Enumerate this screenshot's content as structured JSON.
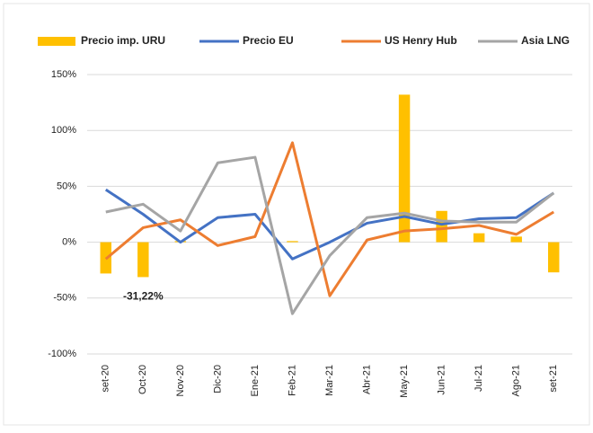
{
  "chart_data": {
    "type": "bar",
    "categories": [
      "set-20",
      "Oct-20",
      "Nov-20",
      "Dic-20",
      "Ene-21",
      "Feb-21",
      "Mar-21",
      "Abr-21",
      "May-21",
      "Jun-21",
      "Jul-21",
      "Ago-21",
      "set-21"
    ],
    "series": [
      {
        "name": "Precio imp. URU",
        "type": "bar",
        "color": "#ffc000",
        "values": [
          -28,
          -31.22,
          1,
          0,
          0,
          1,
          0,
          0,
          132,
          28,
          8,
          5,
          -27
        ],
        "value_labels": [
          null,
          "-31,22%",
          null,
          null,
          null,
          null,
          null,
          null,
          null,
          null,
          null,
          null,
          null
        ]
      },
      {
        "name": "Precio EU",
        "type": "line",
        "color": "#4472c4",
        "values": [
          47,
          25,
          0,
          22,
          25,
          -15,
          0,
          17,
          23,
          16,
          21,
          22,
          44
        ]
      },
      {
        "name": "US Henry Hub",
        "type": "line",
        "color": "#ed7d31",
        "values": [
          -15,
          13,
          20,
          -3,
          5,
          89,
          -48,
          2,
          10,
          12,
          15,
          7,
          27
        ]
      },
      {
        "name": "Asia LNG",
        "type": "line",
        "color": "#a5a5a5",
        "values": [
          27,
          34,
          10,
          71,
          76,
          -64,
          -12,
          22,
          26,
          19,
          18,
          18,
          44
        ]
      }
    ],
    "ylim": [
      -100,
      150
    ],
    "yticks": [
      {
        "value": -100,
        "label": "-100%"
      },
      {
        "value": -50,
        "label": "-50%"
      },
      {
        "value": 0,
        "label": "0%"
      },
      {
        "value": 50,
        "label": "50%"
      },
      {
        "value": 100,
        "label": "100%"
      },
      {
        "value": 150,
        "label": "150%"
      }
    ],
    "grid": true,
    "legend": "top"
  }
}
